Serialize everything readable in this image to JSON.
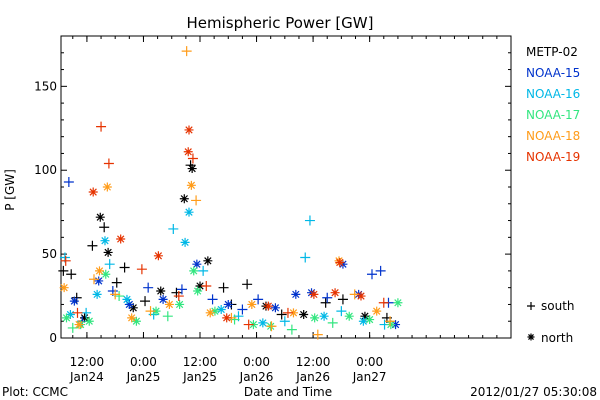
{
  "chart_data": {
    "type": "scatter",
    "title": "Hemispheric Power [GW]",
    "xlabel": "Date and Time",
    "ylabel": "P [GW]",
    "ylim": [
      0,
      180
    ],
    "yticks": [
      0,
      50,
      100,
      150
    ],
    "xlim": [
      "2012-01-23T06:30",
      "2012-01-27T06:00"
    ],
    "xticks": [
      {
        "t": "2012-01-23T12:00",
        "top": "12:00",
        "bottom": "Jan24"
      },
      {
        "t": "2012-01-24T00:00",
        "top": "0:00",
        "bottom": "Jan25"
      },
      {
        "t": "2012-01-24T12:00",
        "top": "12:00",
        "bottom": "Jan25"
      },
      {
        "t": "2012-01-25T00:00",
        "top": "0:00",
        "bottom": "Jan26"
      },
      {
        "t": "2012-01-25T12:00",
        "top": "12:00",
        "bottom": "Jan26"
      },
      {
        "t": "2012-01-26T00:00",
        "top": "0:00",
        "bottom": "Jan27"
      }
    ],
    "grid": false,
    "legend_position": "right",
    "series": [
      {
        "name": "METP-02",
        "color": "#000000",
        "points": [
          [
            "2012-01-23T07:00",
            40,
            "s"
          ],
          [
            "2012-01-23T08:40",
            38,
            "s"
          ],
          [
            "2012-01-23T09:50",
            24,
            "s"
          ],
          [
            "2012-01-23T11:30",
            12,
            "n"
          ],
          [
            "2012-01-23T13:10",
            55,
            "s"
          ],
          [
            "2012-01-23T14:50",
            72,
            "n"
          ],
          [
            "2012-01-23T15:40",
            66,
            "s"
          ],
          [
            "2012-01-23T16:30",
            51,
            "n"
          ],
          [
            "2012-01-23T18:20",
            33,
            "s"
          ],
          [
            "2012-01-23T20:00",
            42,
            "s"
          ],
          [
            "2012-01-23T21:50",
            18,
            "n"
          ],
          [
            "2012-01-24T00:20",
            22,
            "s"
          ],
          [
            "2012-01-24T03:40",
            28,
            "n"
          ],
          [
            "2012-01-24T07:00",
            27,
            "s"
          ],
          [
            "2012-01-24T08:40",
            83,
            "n"
          ],
          [
            "2012-01-24T10:00",
            103,
            "s"
          ],
          [
            "2012-01-24T10:20",
            101,
            "n"
          ],
          [
            "2012-01-24T12:00",
            31,
            "n"
          ],
          [
            "2012-01-24T13:40",
            46,
            "n"
          ],
          [
            "2012-01-24T17:00",
            30,
            "s"
          ],
          [
            "2012-01-24T18:40",
            20,
            "s"
          ],
          [
            "2012-01-24T22:00",
            32,
            "s"
          ],
          [
            "2012-01-25T02:00",
            19,
            "n"
          ],
          [
            "2012-01-25T05:20",
            14,
            "s"
          ],
          [
            "2012-01-25T10:00",
            14,
            "n"
          ],
          [
            "2012-01-25T14:40",
            21,
            "s"
          ],
          [
            "2012-01-25T18:20",
            23,
            "s"
          ],
          [
            "2012-01-25T23:00",
            13,
            "n"
          ],
          [
            "2012-01-26T03:40",
            12,
            "s"
          ]
        ]
      },
      {
        "name": "NOAA-15",
        "color": "#0033cc",
        "points": [
          [
            "2012-01-23T08:10",
            93,
            "s"
          ],
          [
            "2012-01-23T09:20",
            22,
            "n"
          ],
          [
            "2012-01-23T11:00",
            10,
            "s"
          ],
          [
            "2012-01-23T14:30",
            34,
            "n"
          ],
          [
            "2012-01-23T17:30",
            28,
            "s"
          ],
          [
            "2012-01-23T21:00",
            20,
            "n"
          ],
          [
            "2012-01-24T01:00",
            30,
            "s"
          ],
          [
            "2012-01-24T04:10",
            23,
            "n"
          ],
          [
            "2012-01-24T08:10",
            29,
            "s"
          ],
          [
            "2012-01-24T11:20",
            44,
            "n"
          ],
          [
            "2012-01-24T14:40",
            23,
            "s"
          ],
          [
            "2012-01-24T18:00",
            20,
            "n"
          ],
          [
            "2012-01-24T21:00",
            17,
            "s"
          ],
          [
            "2012-01-25T00:20",
            23,
            "s"
          ],
          [
            "2012-01-25T04:00",
            18,
            "n"
          ],
          [
            "2012-01-25T08:20",
            26,
            "n"
          ],
          [
            "2012-01-25T11:40",
            27,
            "n"
          ],
          [
            "2012-01-25T15:00",
            24,
            "s"
          ],
          [
            "2012-01-25T18:20",
            44,
            "n"
          ],
          [
            "2012-01-25T21:40",
            26,
            "n"
          ],
          [
            "2012-01-26T00:30",
            38,
            "s"
          ],
          [
            "2012-01-26T02:20",
            40,
            "s"
          ],
          [
            "2012-01-26T04:00",
            21,
            "s"
          ],
          [
            "2012-01-26T05:30",
            8,
            "n"
          ]
        ]
      },
      {
        "name": "NOAA-16",
        "color": "#00b8e6",
        "points": [
          [
            "2012-01-23T07:20",
            48,
            "s"
          ],
          [
            "2012-01-23T08:30",
            14,
            "n"
          ],
          [
            "2012-01-23T11:50",
            15,
            "s"
          ],
          [
            "2012-01-23T14:10",
            26,
            "n"
          ],
          [
            "2012-01-23T15:50",
            58,
            "n"
          ],
          [
            "2012-01-23T16:50",
            44,
            "s"
          ],
          [
            "2012-01-23T20:30",
            23,
            "n"
          ],
          [
            "2012-01-24T02:10",
            14,
            "s"
          ],
          [
            "2012-01-24T06:20",
            65,
            "s"
          ],
          [
            "2012-01-24T08:50",
            57,
            "n"
          ],
          [
            "2012-01-24T09:40",
            75,
            "n"
          ],
          [
            "2012-01-24T12:40",
            40,
            "s"
          ],
          [
            "2012-01-24T16:30",
            17,
            "n"
          ],
          [
            "2012-01-24T20:10",
            13,
            "s"
          ],
          [
            "2012-01-25T01:20",
            9,
            "n"
          ],
          [
            "2012-01-25T06:00",
            10,
            "s"
          ],
          [
            "2012-01-25T10:20",
            48,
            "s"
          ],
          [
            "2012-01-25T11:20",
            70,
            "s"
          ],
          [
            "2012-01-25T14:20",
            13,
            "n"
          ],
          [
            "2012-01-25T18:00",
            16,
            "s"
          ],
          [
            "2012-01-25T22:40",
            10,
            "n"
          ],
          [
            "2012-01-26T03:10",
            8,
            "s"
          ]
        ]
      },
      {
        "name": "NOAA-17",
        "color": "#33e680",
        "points": [
          [
            "2012-01-23T07:40",
            12,
            "n"
          ],
          [
            "2012-01-23T09:00",
            6,
            "s"
          ],
          [
            "2012-01-23T10:40",
            8,
            "n"
          ],
          [
            "2012-01-23T12:30",
            10,
            "n"
          ],
          [
            "2012-01-23T16:00",
            38,
            "n"
          ],
          [
            "2012-01-23T18:50",
            25,
            "s"
          ],
          [
            "2012-01-23T22:30",
            10,
            "n"
          ],
          [
            "2012-01-24T02:40",
            16,
            "n"
          ],
          [
            "2012-01-24T05:10",
            13,
            "s"
          ],
          [
            "2012-01-24T07:40",
            20,
            "n"
          ],
          [
            "2012-01-24T10:40",
            40,
            "n"
          ],
          [
            "2012-01-24T11:30",
            28,
            "n"
          ],
          [
            "2012-01-24T15:10",
            16,
            "n"
          ],
          [
            "2012-01-24T19:20",
            11,
            "s"
          ],
          [
            "2012-01-24T23:20",
            8,
            "n"
          ],
          [
            "2012-01-25T03:00",
            7,
            "n"
          ],
          [
            "2012-01-25T07:30",
            5,
            "s"
          ],
          [
            "2012-01-25T12:20",
            12,
            "n"
          ],
          [
            "2012-01-25T16:10",
            9,
            "s"
          ],
          [
            "2012-01-25T19:40",
            13,
            "n"
          ],
          [
            "2012-01-26T00:00",
            11,
            "n"
          ],
          [
            "2012-01-26T04:30",
            8,
            "n"
          ],
          [
            "2012-01-26T06:00",
            21,
            "n"
          ]
        ]
      },
      {
        "name": "NOAA-18",
        "color": "#ff9c1a",
        "points": [
          [
            "2012-01-23T07:10",
            30,
            "n"
          ],
          [
            "2012-01-23T10:20",
            8,
            "n"
          ],
          [
            "2012-01-23T13:30",
            35,
            "s"
          ],
          [
            "2012-01-23T14:40",
            40,
            "n"
          ],
          [
            "2012-01-23T16:20",
            90,
            "n"
          ],
          [
            "2012-01-23T18:00",
            26,
            "s"
          ],
          [
            "2012-01-23T21:30",
            12,
            "n"
          ],
          [
            "2012-01-24T01:30",
            16,
            "s"
          ],
          [
            "2012-01-24T05:30",
            20,
            "n"
          ],
          [
            "2012-01-24T09:10",
            171,
            "s"
          ],
          [
            "2012-01-24T10:10",
            91,
            "n"
          ],
          [
            "2012-01-24T11:10",
            82,
            "s"
          ],
          [
            "2012-01-24T14:10",
            15,
            "n"
          ],
          [
            "2012-01-24T18:40",
            12,
            "s"
          ],
          [
            "2012-01-24T23:00",
            20,
            "n"
          ],
          [
            "2012-01-25T03:10",
            7,
            "s"
          ],
          [
            "2012-01-25T07:50",
            15,
            "n"
          ],
          [
            "2012-01-25T13:00",
            2,
            "s"
          ],
          [
            "2012-01-25T17:30",
            46,
            "n"
          ],
          [
            "2012-01-25T20:50",
            26,
            "s"
          ],
          [
            "2012-01-26T01:30",
            16,
            "n"
          ],
          [
            "2012-01-26T04:20",
            10,
            "s"
          ]
        ]
      },
      {
        "name": "NOAA-19",
        "color": "#e63300",
        "points": [
          [
            "2012-01-23T07:30",
            46,
            "s"
          ],
          [
            "2012-01-23T10:00",
            15,
            "s"
          ],
          [
            "2012-01-23T13:20",
            87,
            "n"
          ],
          [
            "2012-01-23T15:00",
            126,
            "s"
          ],
          [
            "2012-01-23T16:40",
            104,
            "s"
          ],
          [
            "2012-01-23T19:10",
            59,
            "n"
          ],
          [
            "2012-01-23T23:40",
            41,
            "s"
          ],
          [
            "2012-01-24T03:10",
            49,
            "n"
          ],
          [
            "2012-01-24T07:30",
            25,
            "s"
          ],
          [
            "2012-01-24T09:30",
            111,
            "n"
          ],
          [
            "2012-01-24T09:40",
            124,
            "n"
          ],
          [
            "2012-01-24T10:30",
            107,
            "s"
          ],
          [
            "2012-01-24T13:20",
            31,
            "s"
          ],
          [
            "2012-01-24T17:40",
            12,
            "n"
          ],
          [
            "2012-01-24T22:20",
            8,
            "s"
          ],
          [
            "2012-01-25T02:30",
            19,
            "n"
          ],
          [
            "2012-01-25T06:40",
            15,
            "s"
          ],
          [
            "2012-01-25T12:10",
            26,
            "n"
          ],
          [
            "2012-01-25T16:40",
            27,
            "n"
          ],
          [
            "2012-01-25T17:40",
            45,
            "n"
          ],
          [
            "2012-01-25T22:10",
            25,
            "n"
          ],
          [
            "2012-01-26T03:00",
            21,
            "s"
          ]
        ]
      }
    ],
    "legend": {
      "south": "south",
      "north": "north"
    }
  },
  "footer": {
    "left": "Plot: CCMC",
    "right": "2012/01/27 05:30:08"
  }
}
